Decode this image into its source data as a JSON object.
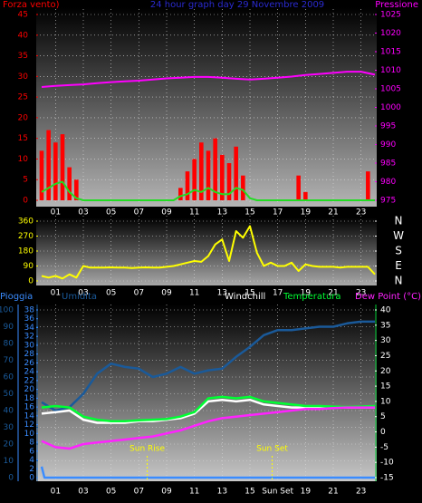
{
  "chart_data": [
    {
      "type": "combo",
      "title": "24 hour graph day  29 Novembre 2009",
      "xlim": [
        0,
        24
      ],
      "xticks": [
        {
          "value": 1,
          "label": "01"
        },
        {
          "value": 3,
          "label": "03"
        },
        {
          "value": 5,
          "label": "05"
        },
        {
          "value": 7,
          "label": "07"
        },
        {
          "value": 9,
          "label": "09"
        },
        {
          "value": 11,
          "label": "11"
        },
        {
          "value": 13,
          "label": "13"
        },
        {
          "value": 15,
          "label": "15"
        },
        {
          "value": 17,
          "label": "17"
        },
        {
          "value": 19,
          "label": "19"
        },
        {
          "value": 21,
          "label": "21"
        },
        {
          "value": 23,
          "label": "23"
        }
      ],
      "ylim": [
        0,
        45
      ],
      "yticks": [
        0,
        5,
        10,
        15,
        20,
        25,
        30,
        35,
        40,
        45
      ],
      "y2lim": [
        975,
        1025
      ],
      "y2ticks": [
        975,
        980,
        985,
        990,
        995,
        1000,
        1005,
        1010,
        1015,
        1020,
        1025
      ],
      "grid": true,
      "series": [
        {
          "name": "Forza vento)",
          "color": "#ff0000",
          "style": "bar",
          "x": [
            0,
            0.5,
            1,
            1.5,
            2,
            2.5,
            3,
            3.5,
            4,
            4.5,
            5,
            5.5,
            6,
            6.5,
            7,
            7.5,
            8,
            8.5,
            9,
            9.5,
            10,
            10.5,
            11,
            11.5,
            12,
            12.5,
            13,
            13.5,
            14,
            14.5,
            15,
            15.5,
            16,
            16.5,
            17,
            17.5,
            18,
            18.5,
            19,
            19.5,
            20,
            20.5,
            21,
            21.5,
            22,
            22.5,
            23,
            23.5
          ],
          "values": [
            12,
            17,
            14,
            16,
            8,
            5,
            0,
            0,
            0,
            0,
            0,
            0,
            0,
            0,
            0,
            0,
            0,
            0,
            0,
            0,
            3,
            7,
            10,
            14,
            12,
            15,
            11,
            9,
            13,
            6,
            0,
            0,
            0,
            0,
            0,
            0,
            0,
            6,
            2,
            0,
            0,
            0,
            0,
            0,
            0,
            0,
            0,
            7
          ]
        },
        {
          "color": "#22dd22",
          "style": "line",
          "x": [
            0,
            0.5,
            1,
            1.5,
            2,
            2.5,
            3,
            3.5,
            4,
            4.5,
            5,
            5.5,
            6,
            6.5,
            7,
            7.5,
            8,
            8.5,
            9,
            9.5,
            10,
            10.5,
            11,
            11.5,
            12,
            12.5,
            13,
            13.5,
            14,
            14.5,
            15,
            15.5,
            16,
            16.5,
            17,
            17.5,
            18,
            18.5,
            19,
            19.5,
            20,
            20.5,
            21,
            21.5,
            22,
            22.5,
            23,
            23.5,
            24
          ],
          "values": [
            2,
            3,
            4,
            4.5,
            2,
            0.5,
            0,
            0,
            0,
            0,
            0,
            0,
            0,
            0,
            0,
            0,
            0,
            0,
            0,
            0,
            1,
            1.5,
            2.5,
            2,
            3,
            2,
            1.5,
            1.5,
            3,
            2.5,
            0.5,
            0,
            0,
            0,
            0,
            0,
            0,
            0,
            0,
            0,
            0,
            0,
            0,
            0,
            0,
            0,
            0,
            0,
            0
          ]
        },
        {
          "name": "Pressione",
          "color": "#ff00ff",
          "style": "line",
          "axis": "y2",
          "x": [
            0,
            1,
            2,
            3,
            4,
            5,
            6,
            7,
            8,
            9,
            10,
            11,
            12,
            13,
            14,
            15,
            16,
            17,
            18,
            19,
            20,
            21,
            22,
            23,
            24
          ],
          "values": [
            1005.5,
            1005.8,
            1006,
            1006.2,
            1006.5,
            1006.8,
            1007,
            1007.2,
            1007.5,
            1007.8,
            1008,
            1008.2,
            1008.2,
            1008,
            1007.7,
            1007.5,
            1007.7,
            1008,
            1008.3,
            1008.7,
            1009,
            1009.3,
            1009.6,
            1009.6,
            1008.8
          ]
        }
      ]
    },
    {
      "type": "line",
      "xlim": [
        0,
        24
      ],
      "xticks": [
        {
          "value": 1,
          "label": "01"
        },
        {
          "value": 3,
          "label": "03"
        },
        {
          "value": 5,
          "label": "05"
        },
        {
          "value": 7,
          "label": "07"
        },
        {
          "value": 9,
          "label": "09"
        },
        {
          "value": 11,
          "label": "11"
        },
        {
          "value": 13,
          "label": "13"
        },
        {
          "value": 15,
          "label": "15"
        },
        {
          "value": 17,
          "label": "17"
        },
        {
          "value": 19,
          "label": "19"
        },
        {
          "value": 21,
          "label": "21"
        },
        {
          "value": 23,
          "label": "23"
        }
      ],
      "ylim": [
        0,
        360
      ],
      "yticks": [
        0,
        90,
        180,
        270,
        360
      ],
      "y2lim": [
        0,
        360
      ],
      "y2ticks": [
        {
          "value": 0,
          "label": "N"
        },
        {
          "value": 90,
          "label": "E"
        },
        {
          "value": 180,
          "label": "S"
        },
        {
          "value": 270,
          "label": "W"
        },
        {
          "value": 360,
          "label": "N"
        }
      ],
      "grid": true,
      "series": [
        {
          "color": "#ffff00",
          "style": "line",
          "x": [
            0,
            0.5,
            1,
            1.5,
            2,
            2.5,
            3,
            3.5,
            4,
            4.5,
            5,
            5.5,
            6,
            6.5,
            7,
            7.5,
            8,
            8.5,
            9,
            9.5,
            10,
            10.5,
            11,
            11.5,
            12,
            12.5,
            13,
            13.5,
            14,
            14.5,
            15,
            15.5,
            16,
            16.5,
            17,
            17.5,
            18,
            18.5,
            19,
            19.5,
            20,
            20.5,
            21,
            21.5,
            22,
            22.5,
            23,
            23.5,
            24
          ],
          "values": [
            30,
            20,
            30,
            15,
            40,
            20,
            90,
            80,
            80,
            80,
            82,
            80,
            80,
            78,
            80,
            82,
            80,
            80,
            85,
            90,
            100,
            110,
            120,
            115,
            150,
            220,
            250,
            120,
            300,
            260,
            330,
            170,
            90,
            110,
            90,
            90,
            110,
            60,
            100,
            90,
            85,
            85,
            85,
            80,
            85,
            85,
            85,
            85,
            40
          ]
        }
      ]
    },
    {
      "type": "line",
      "xlim": [
        0,
        24
      ],
      "xticks": [
        {
          "value": 1,
          "label": "01"
        },
        {
          "value": 3,
          "label": "03"
        },
        {
          "value": 5,
          "label": "05"
        },
        {
          "value": 7,
          "label": "07"
        },
        {
          "value": 9,
          "label": "09"
        },
        {
          "value": 11,
          "label": "11"
        },
        {
          "value": 13,
          "label": "13"
        },
        {
          "value": 15,
          "label": "15"
        },
        {
          "value": 17,
          "label": "Sun Set"
        },
        {
          "value": 19,
          "label": "19"
        },
        {
          "value": 21,
          "label": "21"
        },
        {
          "value": 23,
          "label": "23"
        }
      ],
      "ylim": [
        0,
        100
      ],
      "yticks": [
        0,
        10,
        20,
        30,
        40,
        50,
        60,
        70,
        80,
        90,
        100
      ],
      "y3lim": [
        0,
        38
      ],
      "y3ticks": [
        0,
        2,
        4,
        6,
        8,
        10,
        12,
        14,
        16,
        18,
        20,
        22,
        24,
        26,
        28,
        30,
        32,
        34,
        36,
        38
      ],
      "y2lim": [
        -15,
        40
      ],
      "y2ticks": [
        -15,
        -10,
        -5,
        0,
        5,
        10,
        15,
        20,
        25,
        30,
        35,
        40
      ],
      "grid": true,
      "annotations": [
        {
          "label": "Sun Rise",
          "x": 7.6
        },
        {
          "label": "Sun Set",
          "x": 16.6
        }
      ],
      "series": [
        {
          "name": "Pioggia",
          "color": "#3a8cff",
          "style": "line",
          "axis": "y3",
          "x": [
            0,
            0.2,
            1,
            2,
            3,
            4,
            5,
            6,
            7,
            8,
            9,
            10,
            11,
            12,
            13,
            14,
            15,
            16,
            17,
            18,
            19,
            20,
            21,
            22,
            23,
            24
          ],
          "values": [
            2.5,
            0,
            0,
            0,
            0,
            0,
            0,
            0,
            0,
            0,
            0,
            0,
            0,
            0,
            0,
            0,
            0,
            0,
            0,
            0,
            0,
            0,
            0,
            0,
            0,
            0
          ]
        },
        {
          "name": "Umidita",
          "color": "#1a5a9a",
          "style": "line",
          "x": [
            0,
            1,
            2,
            3,
            4,
            5,
            6,
            7,
            8,
            9,
            10,
            11,
            12,
            13,
            14,
            15,
            16,
            17,
            18,
            19,
            20,
            21,
            22,
            23,
            24
          ],
          "values": [
            45,
            40,
            42,
            50,
            62,
            68,
            66,
            65,
            60,
            62,
            66,
            62,
            64,
            65,
            72,
            78,
            85,
            88,
            88,
            89,
            90,
            90,
            92,
            93,
            93
          ]
        },
        {
          "name": "Windchill",
          "color": "#ffffff",
          "style": "line",
          "axis": "y2",
          "x": [
            0,
            1,
            2,
            3,
            4,
            5,
            6,
            7,
            8,
            9,
            10,
            11,
            12,
            13,
            14,
            15,
            16,
            17,
            18,
            19,
            20,
            21,
            22,
            23,
            24
          ],
          "values": [
            6,
            6.5,
            7,
            4,
            3,
            3,
            3,
            3.5,
            3.5,
            4,
            4.5,
            6,
            10,
            10.5,
            10,
            10.5,
            9,
            8.5,
            8,
            8,
            8,
            8,
            8,
            8,
            8
          ]
        },
        {
          "name": "Temperatura",
          "color": "#00ff33",
          "style": "line",
          "axis": "y2",
          "x": [
            0,
            1,
            2,
            3,
            4,
            5,
            6,
            7,
            8,
            9,
            10,
            11,
            12,
            13,
            14,
            15,
            16,
            17,
            18,
            19,
            20,
            21,
            22,
            23,
            24
          ],
          "values": [
            8,
            8.5,
            8,
            5,
            4,
            3.5,
            3.5,
            3.8,
            4,
            4.2,
            5,
            6.5,
            11,
            11.5,
            11,
            11.5,
            10,
            9.5,
            9,
            8.5,
            8.5,
            8.3,
            8.2,
            8.3,
            8.5
          ]
        },
        {
          "name": "Dew Point (°C)",
          "color": "#ff22ff",
          "style": "line",
          "axis": "y2",
          "x": [
            0,
            1,
            2,
            3,
            4,
            5,
            6,
            7,
            8,
            9,
            10,
            11,
            12,
            13,
            14,
            15,
            16,
            17,
            18,
            19,
            20,
            21,
            22,
            23,
            24
          ],
          "values": [
            -3,
            -5,
            -5.5,
            -4,
            -3.5,
            -3,
            -2.5,
            -2,
            -1.5,
            -0.5,
            0.5,
            2,
            3.5,
            4.5,
            5,
            5.5,
            6,
            6.5,
            7,
            7.5,
            7.5,
            7.8,
            8,
            8,
            8
          ]
        }
      ]
    }
  ]
}
